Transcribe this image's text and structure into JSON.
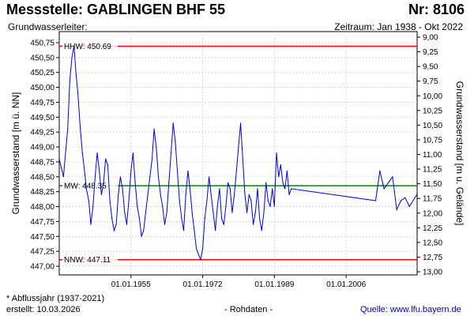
{
  "header": {
    "station": "Messstelle: GABLINGEN BHF 55",
    "number": "Nr: 8106",
    "aquifer": "Grundwasserleiter:",
    "period": "Zeitraum: Jan 1938 - Okt 2022"
  },
  "footer": {
    "note": "* Abflussjahr (1937-2021)",
    "created": "erstellt:  10.03.2026",
    "rawdata": "- Rohdaten -",
    "source": "Quelle:  www.lfu.bayern.de"
  },
  "colors": {
    "series": "#0000dd",
    "hhw": "#ff0000",
    "nnw": "#ff0000",
    "mw": "#008000",
    "grid": "#c8c8c8"
  },
  "chart_data": {
    "type": "line",
    "ylabel": "Grundwasserstand [m ü. NN]",
    "ylabel_right": "Grundwasserstand [m u. Gelände]",
    "ylim": [
      447.0,
      450.75
    ],
    "yticks": [
      "447,00",
      "447,25",
      "447,50",
      "447,75",
      "448,00",
      "448,25",
      "448,50",
      "448,75",
      "449,00",
      "449,25",
      "449,50",
      "449,75",
      "450,00",
      "450,25",
      "450,50",
      "450,75"
    ],
    "yticks_right": [
      "9,00",
      "9,25",
      "9,50",
      "9,75",
      "10,00",
      "10,25",
      "10,50",
      "10,75",
      "11,00",
      "11,25",
      "11,50",
      "11,75",
      "12,00",
      "12,25",
      "12,50",
      "12,75",
      "13,00"
    ],
    "xlim": [
      "1938-01-01",
      "2022-10-31"
    ],
    "xticks": [
      "01.01.1955",
      "01.01.1972",
      "01.01.1989",
      "01.01.2006"
    ],
    "grid": true,
    "reference_lines": [
      {
        "name": "HHW",
        "label": "HHW: 450.69",
        "value": 450.69
      },
      {
        "name": "MW",
        "label": "MW: 448.35",
        "value": 448.35
      },
      {
        "name": "NNW",
        "label": "NNW: 447.11",
        "value": 447.11
      }
    ],
    "series": [
      {
        "x": [
          "1938-01",
          "1939-01",
          "1940-01",
          "1940-07",
          "1941-01",
          "1941-07",
          "1942-01",
          "1942-06",
          "1943-01",
          "1943-07",
          "1944-01",
          "1944-06",
          "1945-01",
          "1945-07",
          "1946-01",
          "1946-07",
          "1947-01",
          "1947-07",
          "1948-01",
          "1948-07",
          "1949-01",
          "1949-07",
          "1950-01",
          "1950-07",
          "1951-01",
          "1951-07",
          "1952-01",
          "1952-07",
          "1953-01",
          "1953-07",
          "1954-01",
          "1954-07",
          "1955-01",
          "1955-07",
          "1956-01",
          "1956-07",
          "1957-01",
          "1957-07",
          "1958-01",
          "1958-07",
          "1959-01",
          "1959-07",
          "1960-01",
          "1960-07",
          "1961-01",
          "1961-07",
          "1962-01",
          "1962-07",
          "1963-01",
          "1963-07",
          "1964-01",
          "1964-07",
          "1965-01",
          "1965-07",
          "1966-01",
          "1966-07",
          "1967-01",
          "1967-07",
          "1968-01",
          "1968-07",
          "1969-01",
          "1969-07",
          "1970-01",
          "1970-07",
          "1971-01",
          "1971-07",
          "1972-01",
          "1972-07",
          "1973-01",
          "1973-07",
          "1974-01",
          "1974-07",
          "1975-01",
          "1975-07",
          "1976-01",
          "1976-07",
          "1977-01",
          "1977-07",
          "1978-01",
          "1978-07",
          "1979-01",
          "1979-07",
          "1980-01",
          "1980-07",
          "1981-01",
          "1981-07",
          "1982-01",
          "1982-07",
          "1983-01",
          "1983-07",
          "1984-01",
          "1984-07",
          "1985-01",
          "1985-07",
          "1986-01",
          "1986-07",
          "1987-01",
          "1987-07",
          "1988-01",
          "1988-07",
          "1989-01",
          "1989-07",
          "1990-01",
          "1990-07",
          "1991-01",
          "1991-07",
          "1992-01",
          "1992-07",
          "1993-01",
          "2013-01",
          "2014-01",
          "2015-01",
          "2016-01",
          "2017-01",
          "2018-01",
          "2019-01",
          "2020-01",
          "2021-01",
          "2022-10"
        ],
        "values": [
          448.8,
          448.5,
          449.3,
          450.1,
          450.5,
          450.69,
          450.2,
          449.9,
          449.3,
          448.9,
          448.6,
          448.3,
          448.1,
          447.7,
          448.0,
          448.5,
          448.9,
          448.6,
          448.2,
          448.4,
          448.8,
          448.7,
          448.1,
          447.8,
          447.6,
          447.7,
          448.2,
          448.5,
          448.3,
          447.9,
          447.7,
          448.1,
          448.6,
          448.9,
          448.4,
          448.0,
          447.8,
          447.5,
          447.6,
          447.9,
          448.2,
          448.5,
          448.8,
          449.3,
          449.0,
          448.5,
          448.2,
          448.0,
          447.7,
          447.9,
          448.4,
          448.9,
          449.4,
          449.1,
          448.6,
          448.1,
          447.8,
          447.6,
          448.2,
          448.6,
          448.3,
          447.9,
          447.6,
          447.3,
          447.2,
          447.11,
          447.3,
          447.8,
          448.1,
          448.5,
          448.2,
          447.9,
          447.6,
          448.0,
          448.3,
          447.8,
          447.7,
          448.0,
          448.4,
          448.3,
          447.9,
          448.2,
          448.6,
          449.0,
          449.4,
          448.8,
          448.2,
          447.9,
          448.2,
          448.1,
          447.7,
          447.9,
          448.3,
          447.8,
          447.6,
          447.9,
          448.4,
          448.1,
          448.0,
          448.3,
          448.0,
          448.9,
          448.5,
          448.7,
          448.4,
          448.3,
          448.6,
          448.2,
          448.3,
          448.1,
          448.6,
          448.3,
          448.4,
          448.5,
          447.95,
          448.1,
          448.15,
          448.0,
          448.2
        ]
      }
    ]
  }
}
